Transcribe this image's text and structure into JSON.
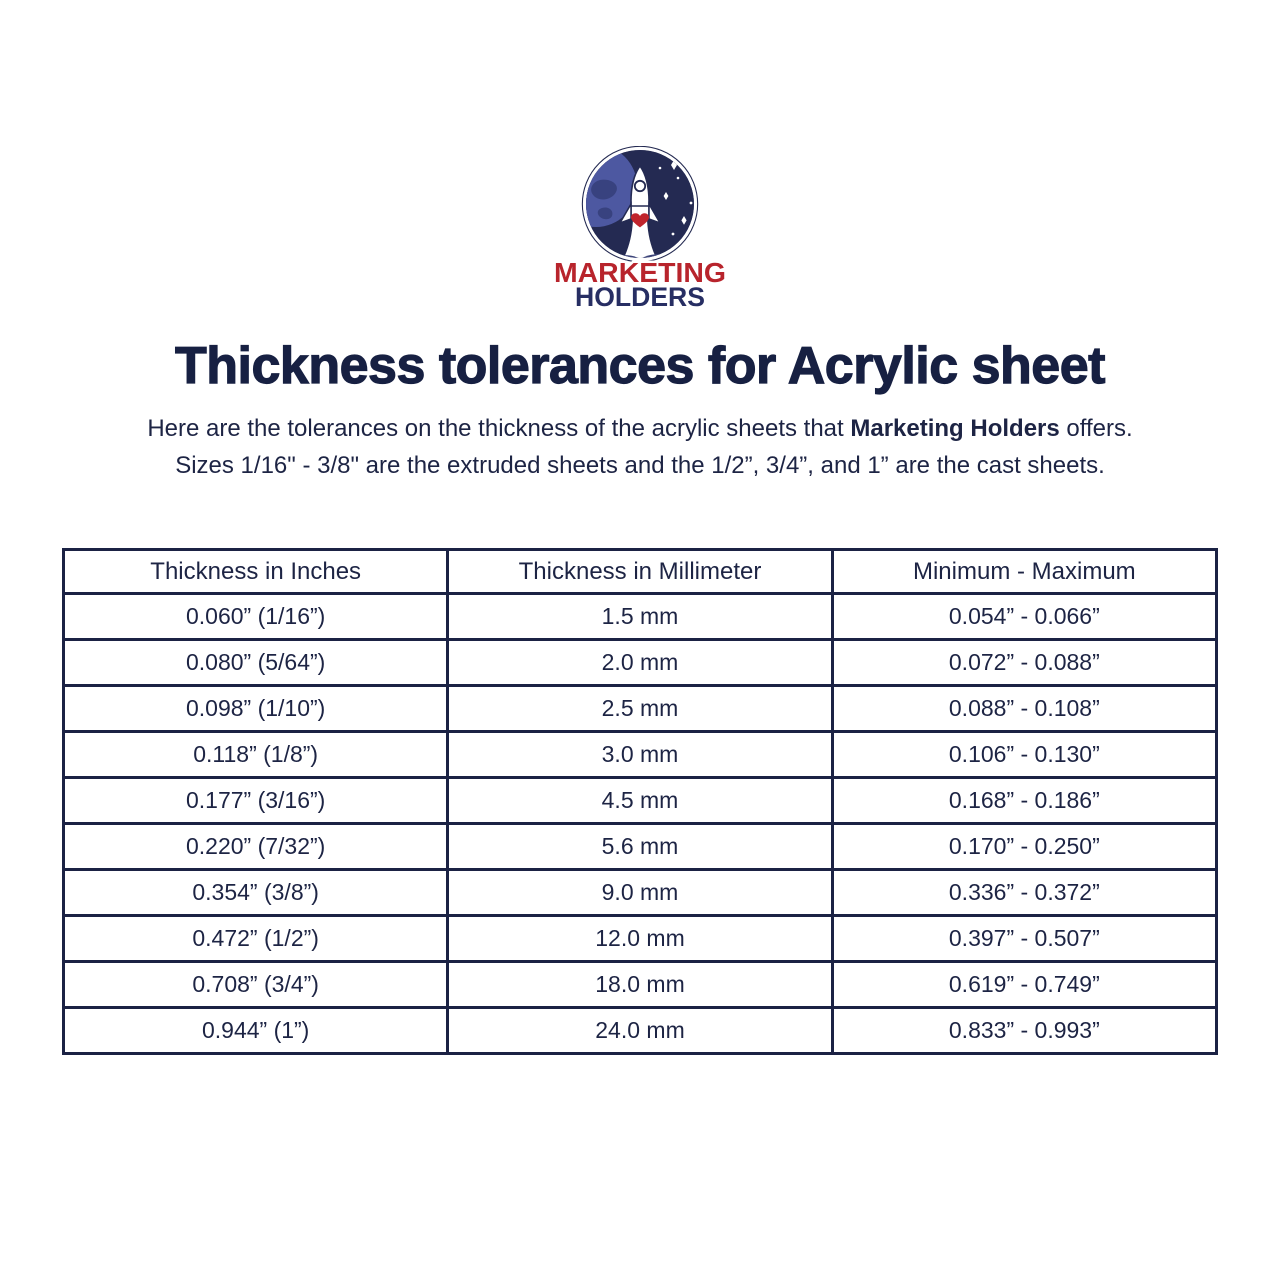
{
  "logo": {
    "brand_line1": "MARKETING",
    "brand_line2": "HOLDERS",
    "colors": {
      "space_navy": "#242a52",
      "planet_blue": "#4d58a1",
      "continent_blue": "#38427f",
      "cloud_light": "#3b4379",
      "cloud_dark": "#2c3463",
      "brand_red": "#b8242c",
      "brand_navy": "#272e63",
      "heart_red": "#c0242c"
    }
  },
  "page": {
    "title": "Thickness tolerances for Acrylic sheet",
    "intro": {
      "line1_prefix": "Here are the tolerances on the thickness of the acrylic sheets that ",
      "line1_bold": "Marketing Holders",
      "line1_suffix": " offers.",
      "line2": "Sizes 1/16\" - 3/8\" are the extruded sheets and the 1/2”, 3/4”, and 1” are the cast sheets."
    }
  },
  "table": {
    "columns": [
      "Thickness in Inches",
      "Thickness in Millimeter",
      "Minimum - Maximum"
    ],
    "rows": [
      [
        "0.060” (1/16”)",
        "1.5 mm",
        "0.054” - 0.066”"
      ],
      [
        "0.080” (5/64”)",
        "2.0 mm",
        "0.072” - 0.088”"
      ],
      [
        "0.098” (1/10”)",
        "2.5 mm",
        "0.088” - 0.108”"
      ],
      [
        "0.118” (1/8”)",
        "3.0 mm",
        "0.106” - 0.130”"
      ],
      [
        "0.177” (3/16”)",
        "4.5 mm",
        "0.168” - 0.186”"
      ],
      [
        "0.220” (7/32”)",
        "5.6 mm",
        "0.170” - 0.250”"
      ],
      [
        "0.354” (3/8”)",
        "9.0 mm",
        "0.336” - 0.372”"
      ],
      [
        "0.472” (1/2”)",
        "12.0 mm",
        "0.397” - 0.507”"
      ],
      [
        "0.708” (3/4”)",
        "18.0 mm",
        "0.619” - 0.749”"
      ],
      [
        "0.944” (1”)",
        "24.0 mm",
        "0.833” - 0.993”"
      ]
    ]
  }
}
